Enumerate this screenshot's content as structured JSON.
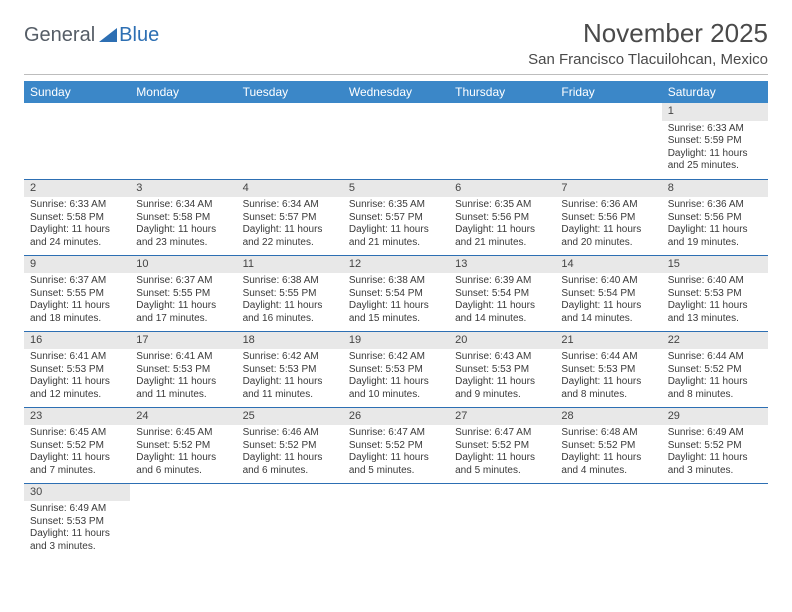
{
  "logo": {
    "part1": "General",
    "part2": "Blue"
  },
  "title": "November 2025",
  "location": "San Francisco Tlacuilohcan, Mexico",
  "colors": {
    "header_bg": "#3b87c8",
    "header_text": "#ffffff",
    "daynum_bg": "#e8e8e8",
    "row_border": "#2d6fb3",
    "body_text": "#3a3a3a"
  },
  "day_headers": [
    "Sunday",
    "Monday",
    "Tuesday",
    "Wednesday",
    "Thursday",
    "Friday",
    "Saturday"
  ],
  "leading_blanks": 6,
  "days": [
    {
      "n": 1,
      "sunrise": "6:33 AM",
      "sunset": "5:59 PM",
      "daylight": "11 hours and 25 minutes."
    },
    {
      "n": 2,
      "sunrise": "6:33 AM",
      "sunset": "5:58 PM",
      "daylight": "11 hours and 24 minutes."
    },
    {
      "n": 3,
      "sunrise": "6:34 AM",
      "sunset": "5:58 PM",
      "daylight": "11 hours and 23 minutes."
    },
    {
      "n": 4,
      "sunrise": "6:34 AM",
      "sunset": "5:57 PM",
      "daylight": "11 hours and 22 minutes."
    },
    {
      "n": 5,
      "sunrise": "6:35 AM",
      "sunset": "5:57 PM",
      "daylight": "11 hours and 21 minutes."
    },
    {
      "n": 6,
      "sunrise": "6:35 AM",
      "sunset": "5:56 PM",
      "daylight": "11 hours and 21 minutes."
    },
    {
      "n": 7,
      "sunrise": "6:36 AM",
      "sunset": "5:56 PM",
      "daylight": "11 hours and 20 minutes."
    },
    {
      "n": 8,
      "sunrise": "6:36 AM",
      "sunset": "5:56 PM",
      "daylight": "11 hours and 19 minutes."
    },
    {
      "n": 9,
      "sunrise": "6:37 AM",
      "sunset": "5:55 PM",
      "daylight": "11 hours and 18 minutes."
    },
    {
      "n": 10,
      "sunrise": "6:37 AM",
      "sunset": "5:55 PM",
      "daylight": "11 hours and 17 minutes."
    },
    {
      "n": 11,
      "sunrise": "6:38 AM",
      "sunset": "5:55 PM",
      "daylight": "11 hours and 16 minutes."
    },
    {
      "n": 12,
      "sunrise": "6:38 AM",
      "sunset": "5:54 PM",
      "daylight": "11 hours and 15 minutes."
    },
    {
      "n": 13,
      "sunrise": "6:39 AM",
      "sunset": "5:54 PM",
      "daylight": "11 hours and 14 minutes."
    },
    {
      "n": 14,
      "sunrise": "6:40 AM",
      "sunset": "5:54 PM",
      "daylight": "11 hours and 14 minutes."
    },
    {
      "n": 15,
      "sunrise": "6:40 AM",
      "sunset": "5:53 PM",
      "daylight": "11 hours and 13 minutes."
    },
    {
      "n": 16,
      "sunrise": "6:41 AM",
      "sunset": "5:53 PM",
      "daylight": "11 hours and 12 minutes."
    },
    {
      "n": 17,
      "sunrise": "6:41 AM",
      "sunset": "5:53 PM",
      "daylight": "11 hours and 11 minutes."
    },
    {
      "n": 18,
      "sunrise": "6:42 AM",
      "sunset": "5:53 PM",
      "daylight": "11 hours and 11 minutes."
    },
    {
      "n": 19,
      "sunrise": "6:42 AM",
      "sunset": "5:53 PM",
      "daylight": "11 hours and 10 minutes."
    },
    {
      "n": 20,
      "sunrise": "6:43 AM",
      "sunset": "5:53 PM",
      "daylight": "11 hours and 9 minutes."
    },
    {
      "n": 21,
      "sunrise": "6:44 AM",
      "sunset": "5:53 PM",
      "daylight": "11 hours and 8 minutes."
    },
    {
      "n": 22,
      "sunrise": "6:44 AM",
      "sunset": "5:52 PM",
      "daylight": "11 hours and 8 minutes."
    },
    {
      "n": 23,
      "sunrise": "6:45 AM",
      "sunset": "5:52 PM",
      "daylight": "11 hours and 7 minutes."
    },
    {
      "n": 24,
      "sunrise": "6:45 AM",
      "sunset": "5:52 PM",
      "daylight": "11 hours and 6 minutes."
    },
    {
      "n": 25,
      "sunrise": "6:46 AM",
      "sunset": "5:52 PM",
      "daylight": "11 hours and 6 minutes."
    },
    {
      "n": 26,
      "sunrise": "6:47 AM",
      "sunset": "5:52 PM",
      "daylight": "11 hours and 5 minutes."
    },
    {
      "n": 27,
      "sunrise": "6:47 AM",
      "sunset": "5:52 PM",
      "daylight": "11 hours and 5 minutes."
    },
    {
      "n": 28,
      "sunrise": "6:48 AM",
      "sunset": "5:52 PM",
      "daylight": "11 hours and 4 minutes."
    },
    {
      "n": 29,
      "sunrise": "6:49 AM",
      "sunset": "5:52 PM",
      "daylight": "11 hours and 3 minutes."
    },
    {
      "n": 30,
      "sunrise": "6:49 AM",
      "sunset": "5:53 PM",
      "daylight": "11 hours and 3 minutes."
    }
  ],
  "labels": {
    "sunrise": "Sunrise:",
    "sunset": "Sunset:",
    "daylight": "Daylight:"
  }
}
